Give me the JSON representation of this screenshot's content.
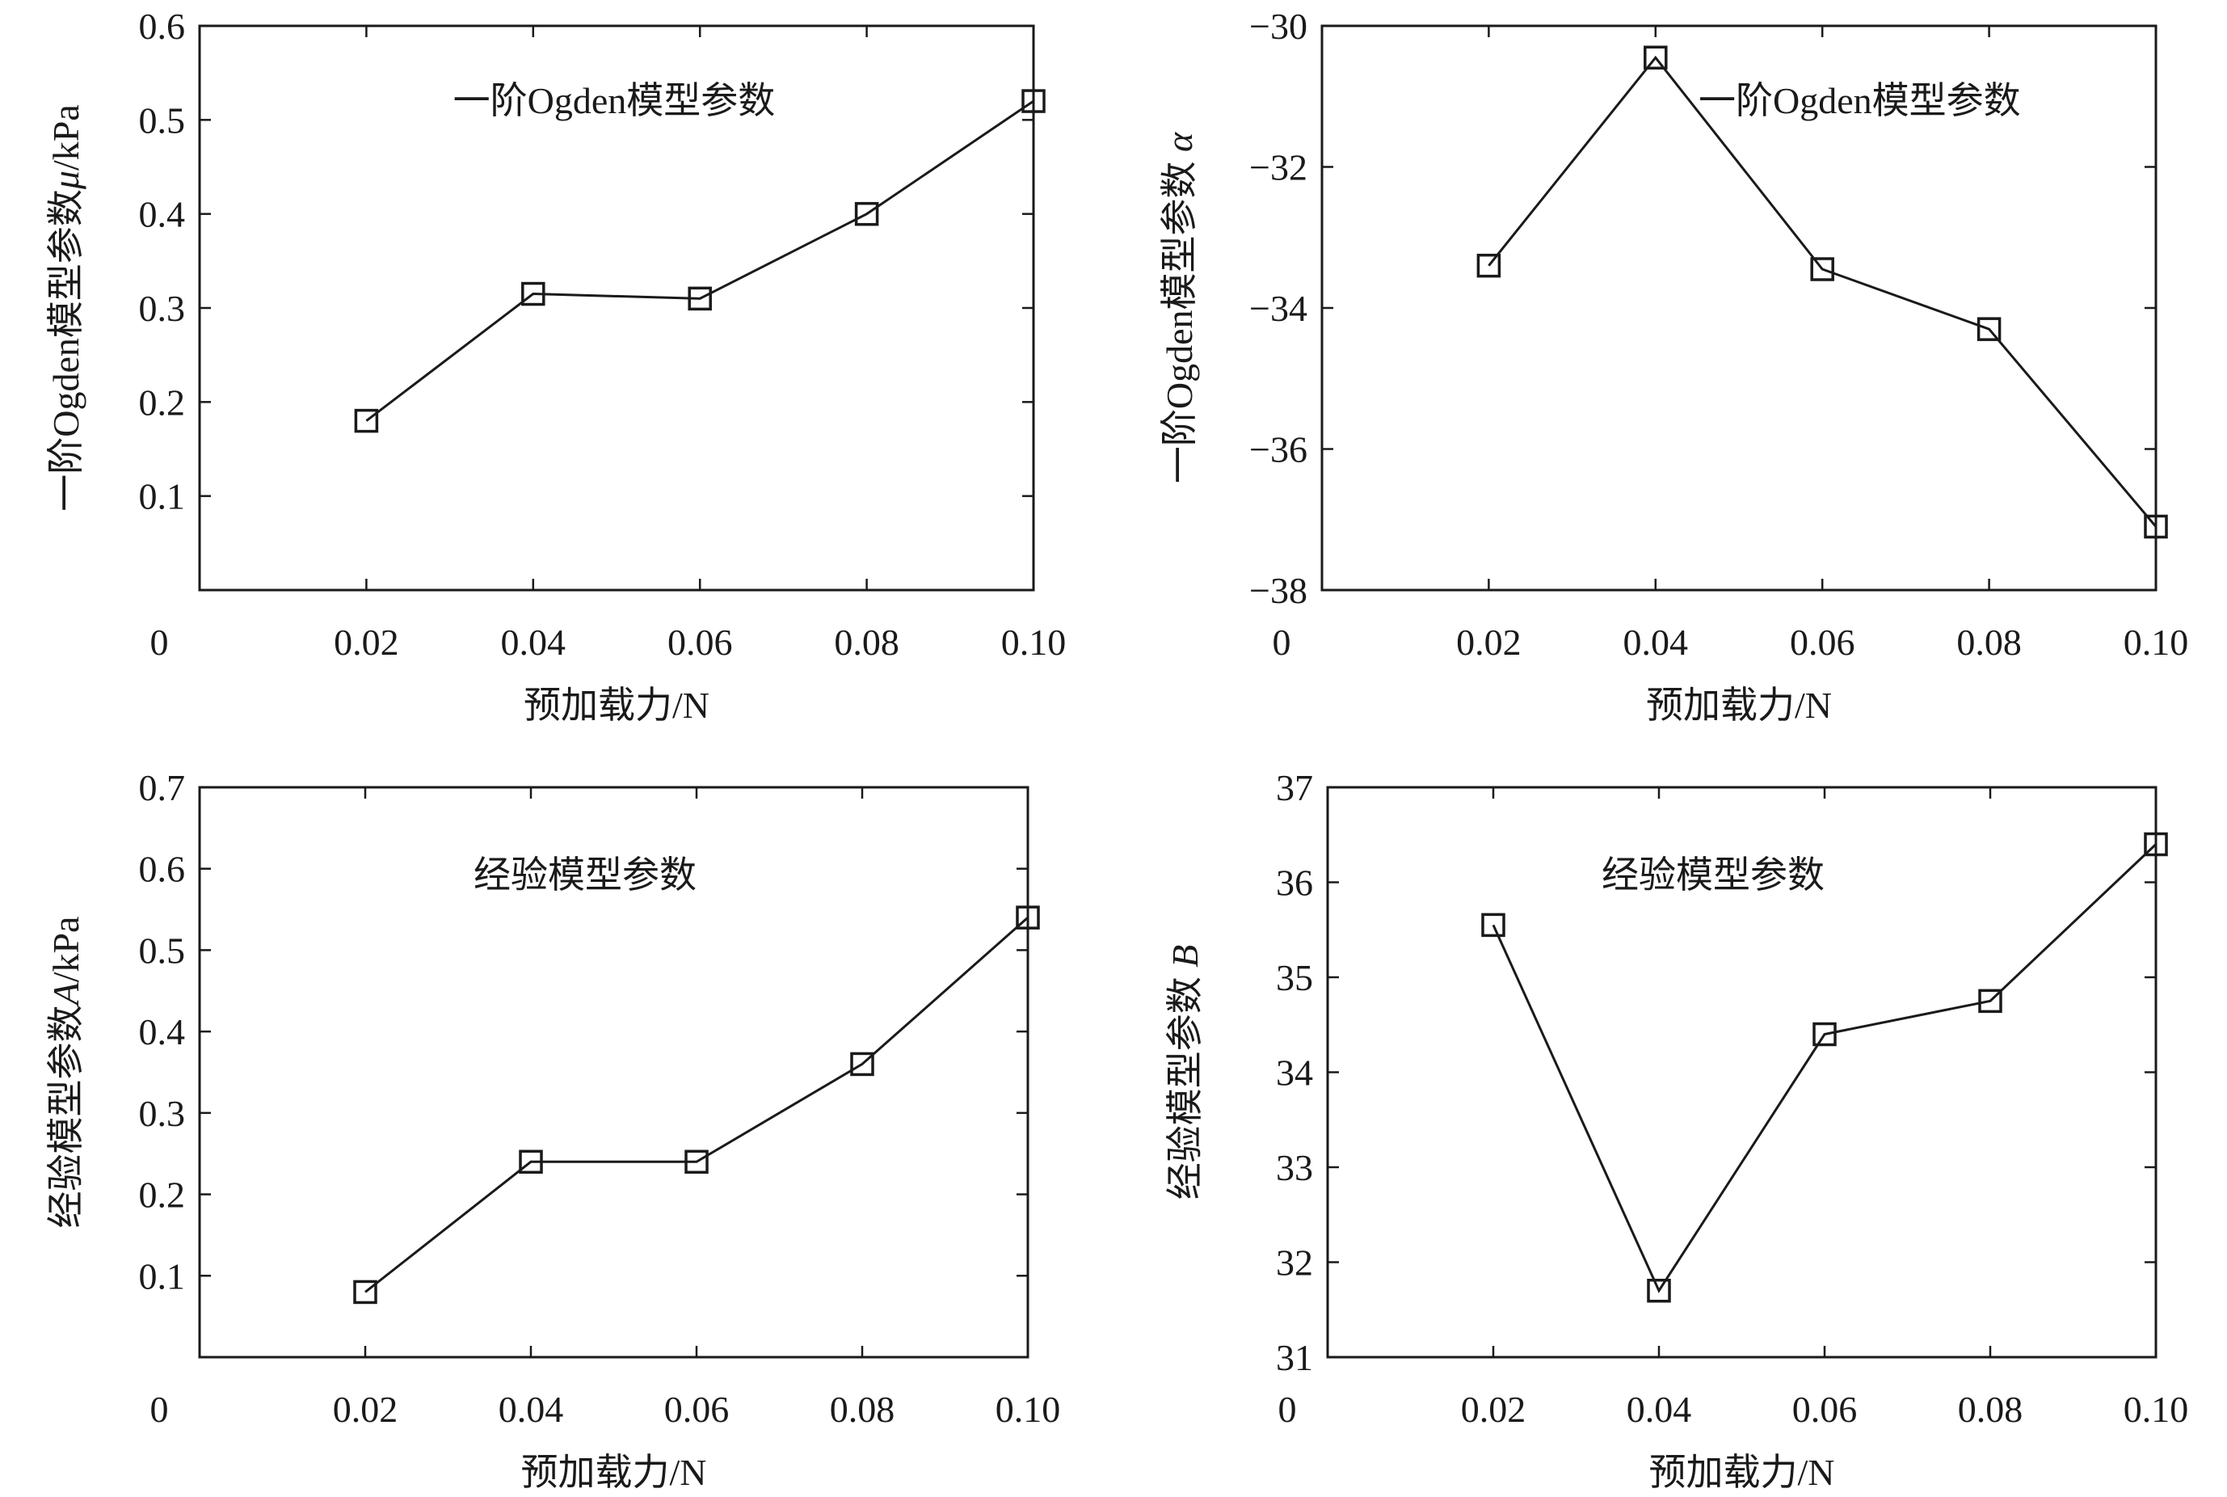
{
  "chart_data": [
    {
      "type": "line",
      "title": "一阶Ogden模型参数",
      "xlabel": "预加载力/N",
      "ylabel": {
        "prefix": "一阶Ogden模型参数",
        "symbol": "μ",
        "suffix": "/kPa"
      },
      "x": [
        0.02,
        0.04,
        0.06,
        0.08,
        0.1
      ],
      "values": [
        0.18,
        0.315,
        0.31,
        0.4,
        0.52
      ],
      "xlim": [
        0,
        0.1
      ],
      "ylim": [
        0,
        0.6
      ],
      "xticks": [
        "0",
        "0.02",
        "0.04",
        "0.06",
        "0.08",
        "0.10"
      ],
      "yticks": [
        0.1,
        0.2,
        0.3,
        0.4,
        0.5,
        0.6
      ],
      "ytick_labels": [
        "0.1",
        "0.2",
        "0.3",
        "0.4",
        "0.5",
        "0.6"
      ],
      "marker": "open-square",
      "grid": false
    },
    {
      "type": "line",
      "title": "一阶Ogden模型参数",
      "xlabel": "预加载力/N",
      "ylabel": {
        "prefix": "一阶Ogden模型参数 ",
        "symbol": "α",
        "suffix": ""
      },
      "x": [
        0.02,
        0.04,
        0.06,
        0.08,
        0.1
      ],
      "values": [
        -33.4,
        -30.45,
        -33.45,
        -34.3,
        -37.1
      ],
      "xlim": [
        0,
        0.1
      ],
      "ylim": [
        -38,
        -30
      ],
      "xticks": [
        "0",
        "0.02",
        "0.04",
        "0.06",
        "0.08",
        "0.10"
      ],
      "yticks": [
        -38,
        -36,
        -34,
        -32,
        -30
      ],
      "ytick_labels": [
        "−38",
        "−36",
        "−34",
        "−32",
        "−30"
      ],
      "marker": "open-square",
      "grid": false
    },
    {
      "type": "line",
      "title": "经验模型参数",
      "xlabel": "预加载力/N",
      "ylabel": {
        "prefix": "经验模型参数",
        "symbol": "A",
        "suffix": "/kPa"
      },
      "x": [
        0.02,
        0.04,
        0.06,
        0.08,
        0.1
      ],
      "values": [
        0.08,
        0.24,
        0.24,
        0.36,
        0.54
      ],
      "xlim": [
        0,
        0.1
      ],
      "ylim": [
        0,
        0.7
      ],
      "xticks": [
        "0",
        "0.02",
        "0.04",
        "0.06",
        "0.08",
        "0.10"
      ],
      "yticks": [
        0.1,
        0.2,
        0.3,
        0.4,
        0.5,
        0.6,
        0.7
      ],
      "ytick_labels": [
        "0.1",
        "0.2",
        "0.3",
        "0.4",
        "0.5",
        "0.6",
        "0.7"
      ],
      "marker": "open-square",
      "grid": false
    },
    {
      "type": "line",
      "title": "经验模型参数",
      "xlabel": "预加载力/N",
      "ylabel": {
        "prefix": "经验模型参数 ",
        "symbol": "B",
        "suffix": ""
      },
      "x": [
        0.02,
        0.04,
        0.06,
        0.08,
        0.1
      ],
      "values": [
        35.55,
        31.7,
        34.4,
        34.75,
        36.4
      ],
      "xlim": [
        0,
        0.1
      ],
      "ylim": [
        31,
        37
      ],
      "xticks": [
        "0",
        "0.02",
        "0.04",
        "0.06",
        "0.08",
        "0.10"
      ],
      "yticks": [
        31,
        32,
        33,
        34,
        35,
        36,
        37
      ],
      "ytick_labels": [
        "31",
        "32",
        "33",
        "34",
        "35",
        "36",
        "37"
      ],
      "marker": "open-square",
      "grid": false
    }
  ]
}
